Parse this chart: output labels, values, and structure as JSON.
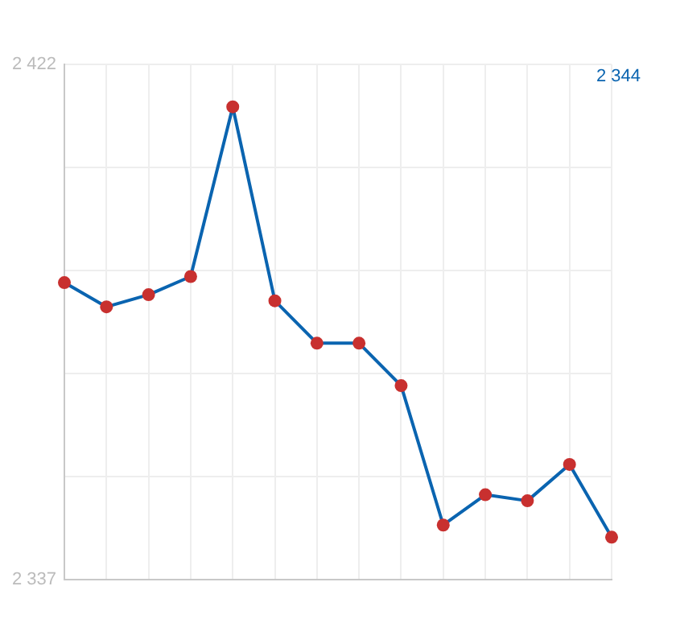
{
  "chart_data": {
    "type": "line",
    "categories": [
      null,
      null,
      null,
      null,
      null,
      null,
      null,
      null,
      null,
      null,
      null,
      null,
      null,
      null
    ],
    "values": [
      2386,
      2382,
      2384,
      2387,
      2415,
      2383,
      2376,
      2376,
      2369,
      2346,
      2351,
      2350,
      2356,
      2344
    ],
    "color": "#0a64b0",
    "colors": [
      "#c8302f",
      "#c8302f",
      "#c8302f",
      "#c8302f",
      "#c8302f",
      "#c8302f",
      "#c8302f",
      "#c8302f",
      "#c8302f",
      "#c8302f",
      "#c8302f",
      "#c8302f",
      "#c8302f",
      "#c8302f"
    ],
    "marker": "circle",
    "ylim": [
      2337,
      2422
    ],
    "yticks": [
      {
        "value": 2337,
        "label": "2 337"
      },
      {
        "value": 2354,
        "label": null
      },
      {
        "value": 2371,
        "label": null
      },
      {
        "value": 2388,
        "label": null
      },
      {
        "value": 2405,
        "label": null
      },
      {
        "value": 2422,
        "label": "2 422"
      }
    ],
    "grid": true,
    "tick_labels": "y",
    "annotations": [
      "2 344"
    ]
  }
}
